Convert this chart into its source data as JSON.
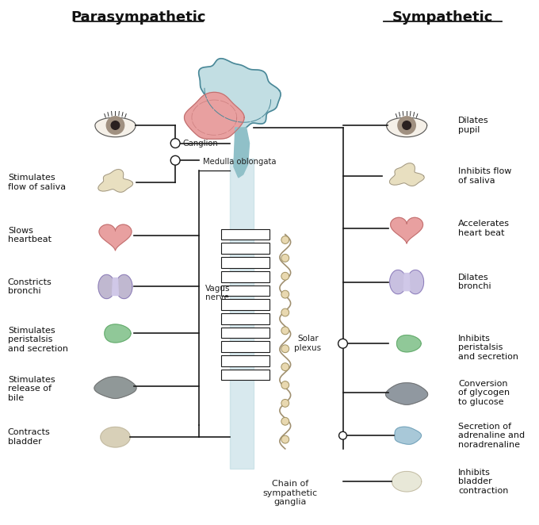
{
  "title_left": "Parasympathetic",
  "title_right": "Sympathetic",
  "bg_color": "#ffffff",
  "line_color": "#1a1a1a",
  "title_fontsize": 13,
  "label_fontsize": 8.0,
  "brain_color": "#a8d0d8",
  "brain_edge": "#4a8898",
  "cerebellum_color": "#e8a0a0",
  "cerebellum_edge": "#c07070",
  "spine_color": "#b8d8e0",
  "eye_iris_color": "#a09080",
  "salivary_color": "#e8dfc0",
  "heart_color": "#e8a0a0",
  "lung_left_color": "#c0b8d0",
  "lung_right_color": "#c8c0e0",
  "stomach_color": "#90c898",
  "liver_color": "#909898",
  "liver_right_color": "#9098a0",
  "bladder_color": "#d8d0b8",
  "adrenal_color": "#a8c8d8",
  "para_labels": [
    "Stimulates\nflow of saliva",
    "Slows\nheartbeat",
    "Constricts\nbronchi",
    "Stimulates\nperistalsis\nand secretion",
    "Stimulates\nrelease of\nbile",
    "Contracts\nbladder"
  ],
  "symp_labels": [
    "Dilates\npupil",
    "Inhibits flow\nof saliva",
    "Accelerates\nheart beat",
    "Dilates\nbronchi",
    "Inhibits\nperistalsis\nand secretion",
    "Conversion\nof glycogen\nto glucose",
    "Secretion of\nadrenaline and\nnoradrenaline",
    "Inhibits\nbladder\ncontraction"
  ],
  "vagus_label": "Vagus\nnerve",
  "medulla_label": "Medulla oblongata",
  "ganglion_label": "Ganglion",
  "solar_label": "Solar\nplexus",
  "chain_label": "Chain of\nsympathetic\nganglia"
}
